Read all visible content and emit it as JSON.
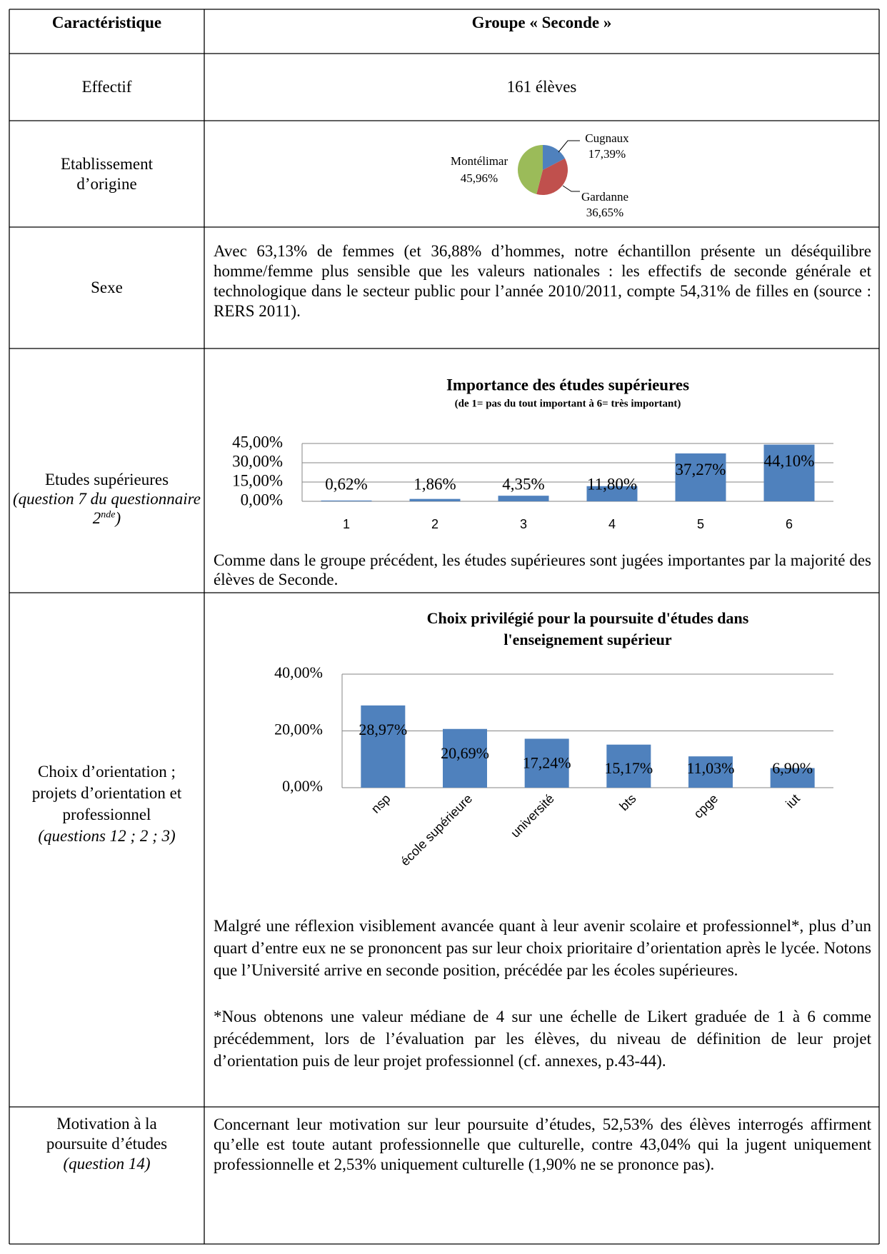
{
  "table": {
    "header": [
      "Caractéristique",
      "Groupe « Seconde »"
    ],
    "rows": [
      {
        "label_lines": [
          "Effectif"
        ],
        "content": "161 élèves"
      },
      {
        "label_lines": [
          "Etablissement",
          "d’origine"
        ]
      },
      {
        "label_lines": [
          "Sexe"
        ],
        "paragraphs": [
          "Avec 63,13% de femmes (et 36,88% d’hommes, notre échantillon présente un déséquilibre homme/femme plus sensible que les valeurs nationales : les effectifs de seconde générale et technologique dans le secteur public pour l’année 2010/2011, compte 54,31% de filles en (source : RERS 2011)."
        ]
      },
      {
        "label_lines": [
          "Etudes supérieures"
        ],
        "note": "(question 7 du questionnaire 2",
        "note_sup": "nde",
        "note_end": ")",
        "paragraphs": [
          "Comme dans le groupe précédent, les études supérieures sont jugées importantes par la majorité des élèves de Seconde."
        ]
      },
      {
        "label_lines": [
          "Choix d’orientation ;",
          "projets d’orientation et",
          "professionnel"
        ],
        "note": "(questions 12 ; 2 ; 3)",
        "paragraphs": [
          "Malgré une réflexion visiblement avancée quant à leur avenir scolaire et professionnel*, plus d’un quart d’entre eux ne se prononcent pas sur leur choix prioritaire d’orientation après le lycée. Notons que l’Université arrive en seconde position, précédée par les écoles supérieures.",
          "*Nous obtenons une valeur médiane de 4 sur une échelle de Likert graduée de 1 à 6 comme précédemment, lors de l’évaluation par les élèves, du niveau de définition de leur projet d’orientation puis de leur projet professionnel (cf. annexes, p.43-44)."
        ]
      },
      {
        "label_lines": [
          "Motivation à la",
          "poursuite d’études"
        ],
        "note": "(question 14)",
        "paragraphs": [
          "Concernant leur motivation sur leur poursuite d’études, 52,53% des élèves interrogés affirment qu’elle est toute autant professionnelle que culturelle, contre 43,04% qui la jugent uniquement professionnelle et 2,53% uniquement culturelle (1,90% ne se prononce pas)."
        ]
      }
    ]
  },
  "chart_data": [
    {
      "type": "pie",
      "categories": [
        "Cugnaux",
        "Gardanne",
        "Montélimar"
      ],
      "values": [
        17.39,
        36.65,
        45.96
      ],
      "value_labels": [
        "17,39%",
        "36,65%",
        "45,96%"
      ],
      "colors": [
        "#4f81bd",
        "#c0504d",
        "#9bbb59"
      ]
    },
    {
      "type": "bar",
      "title": "Importance des études supérieures",
      "subtitle": "(de 1= pas du tout important à 6= très important)",
      "categories": [
        "1",
        "2",
        "3",
        "4",
        "5",
        "6"
      ],
      "values": [
        0.62,
        1.86,
        4.35,
        11.8,
        37.27,
        44.1
      ],
      "value_labels": [
        "0,62%",
        "1,86%",
        "4,35%",
        "11,80%",
        "37,27%",
        "44,10%"
      ],
      "color": "#4f81bd",
      "ylim": [
        0,
        45
      ],
      "yticks": [
        {
          "value": 0,
          "label": "0,00%"
        },
        {
          "value": 15,
          "label": "15,00%"
        },
        {
          "value": 30,
          "label": "30,00%"
        },
        {
          "value": 45,
          "label": "45,00%"
        }
      ],
      "grid": true
    },
    {
      "type": "bar",
      "title_lines": [
        "Choix privilégié pour la poursuite d'études dans",
        "l'enseignement supérieur"
      ],
      "categories": [
        "nsp",
        "école supérieure",
        "université",
        "bts",
        "cpge",
        "iut"
      ],
      "values": [
        28.97,
        20.69,
        17.24,
        15.17,
        11.03,
        6.9
      ],
      "value_labels": [
        "28,97%",
        "20,69%",
        "17,24%",
        "15,17%",
        "11,03%",
        "6,90%"
      ],
      "color": "#4f81bd",
      "ylim": [
        0,
        40
      ],
      "yticks": [
        {
          "value": 0,
          "label": "0,00%"
        },
        {
          "value": 20,
          "label": "20,00%"
        },
        {
          "value": 40,
          "label": "40,00%"
        }
      ],
      "grid": true
    }
  ]
}
